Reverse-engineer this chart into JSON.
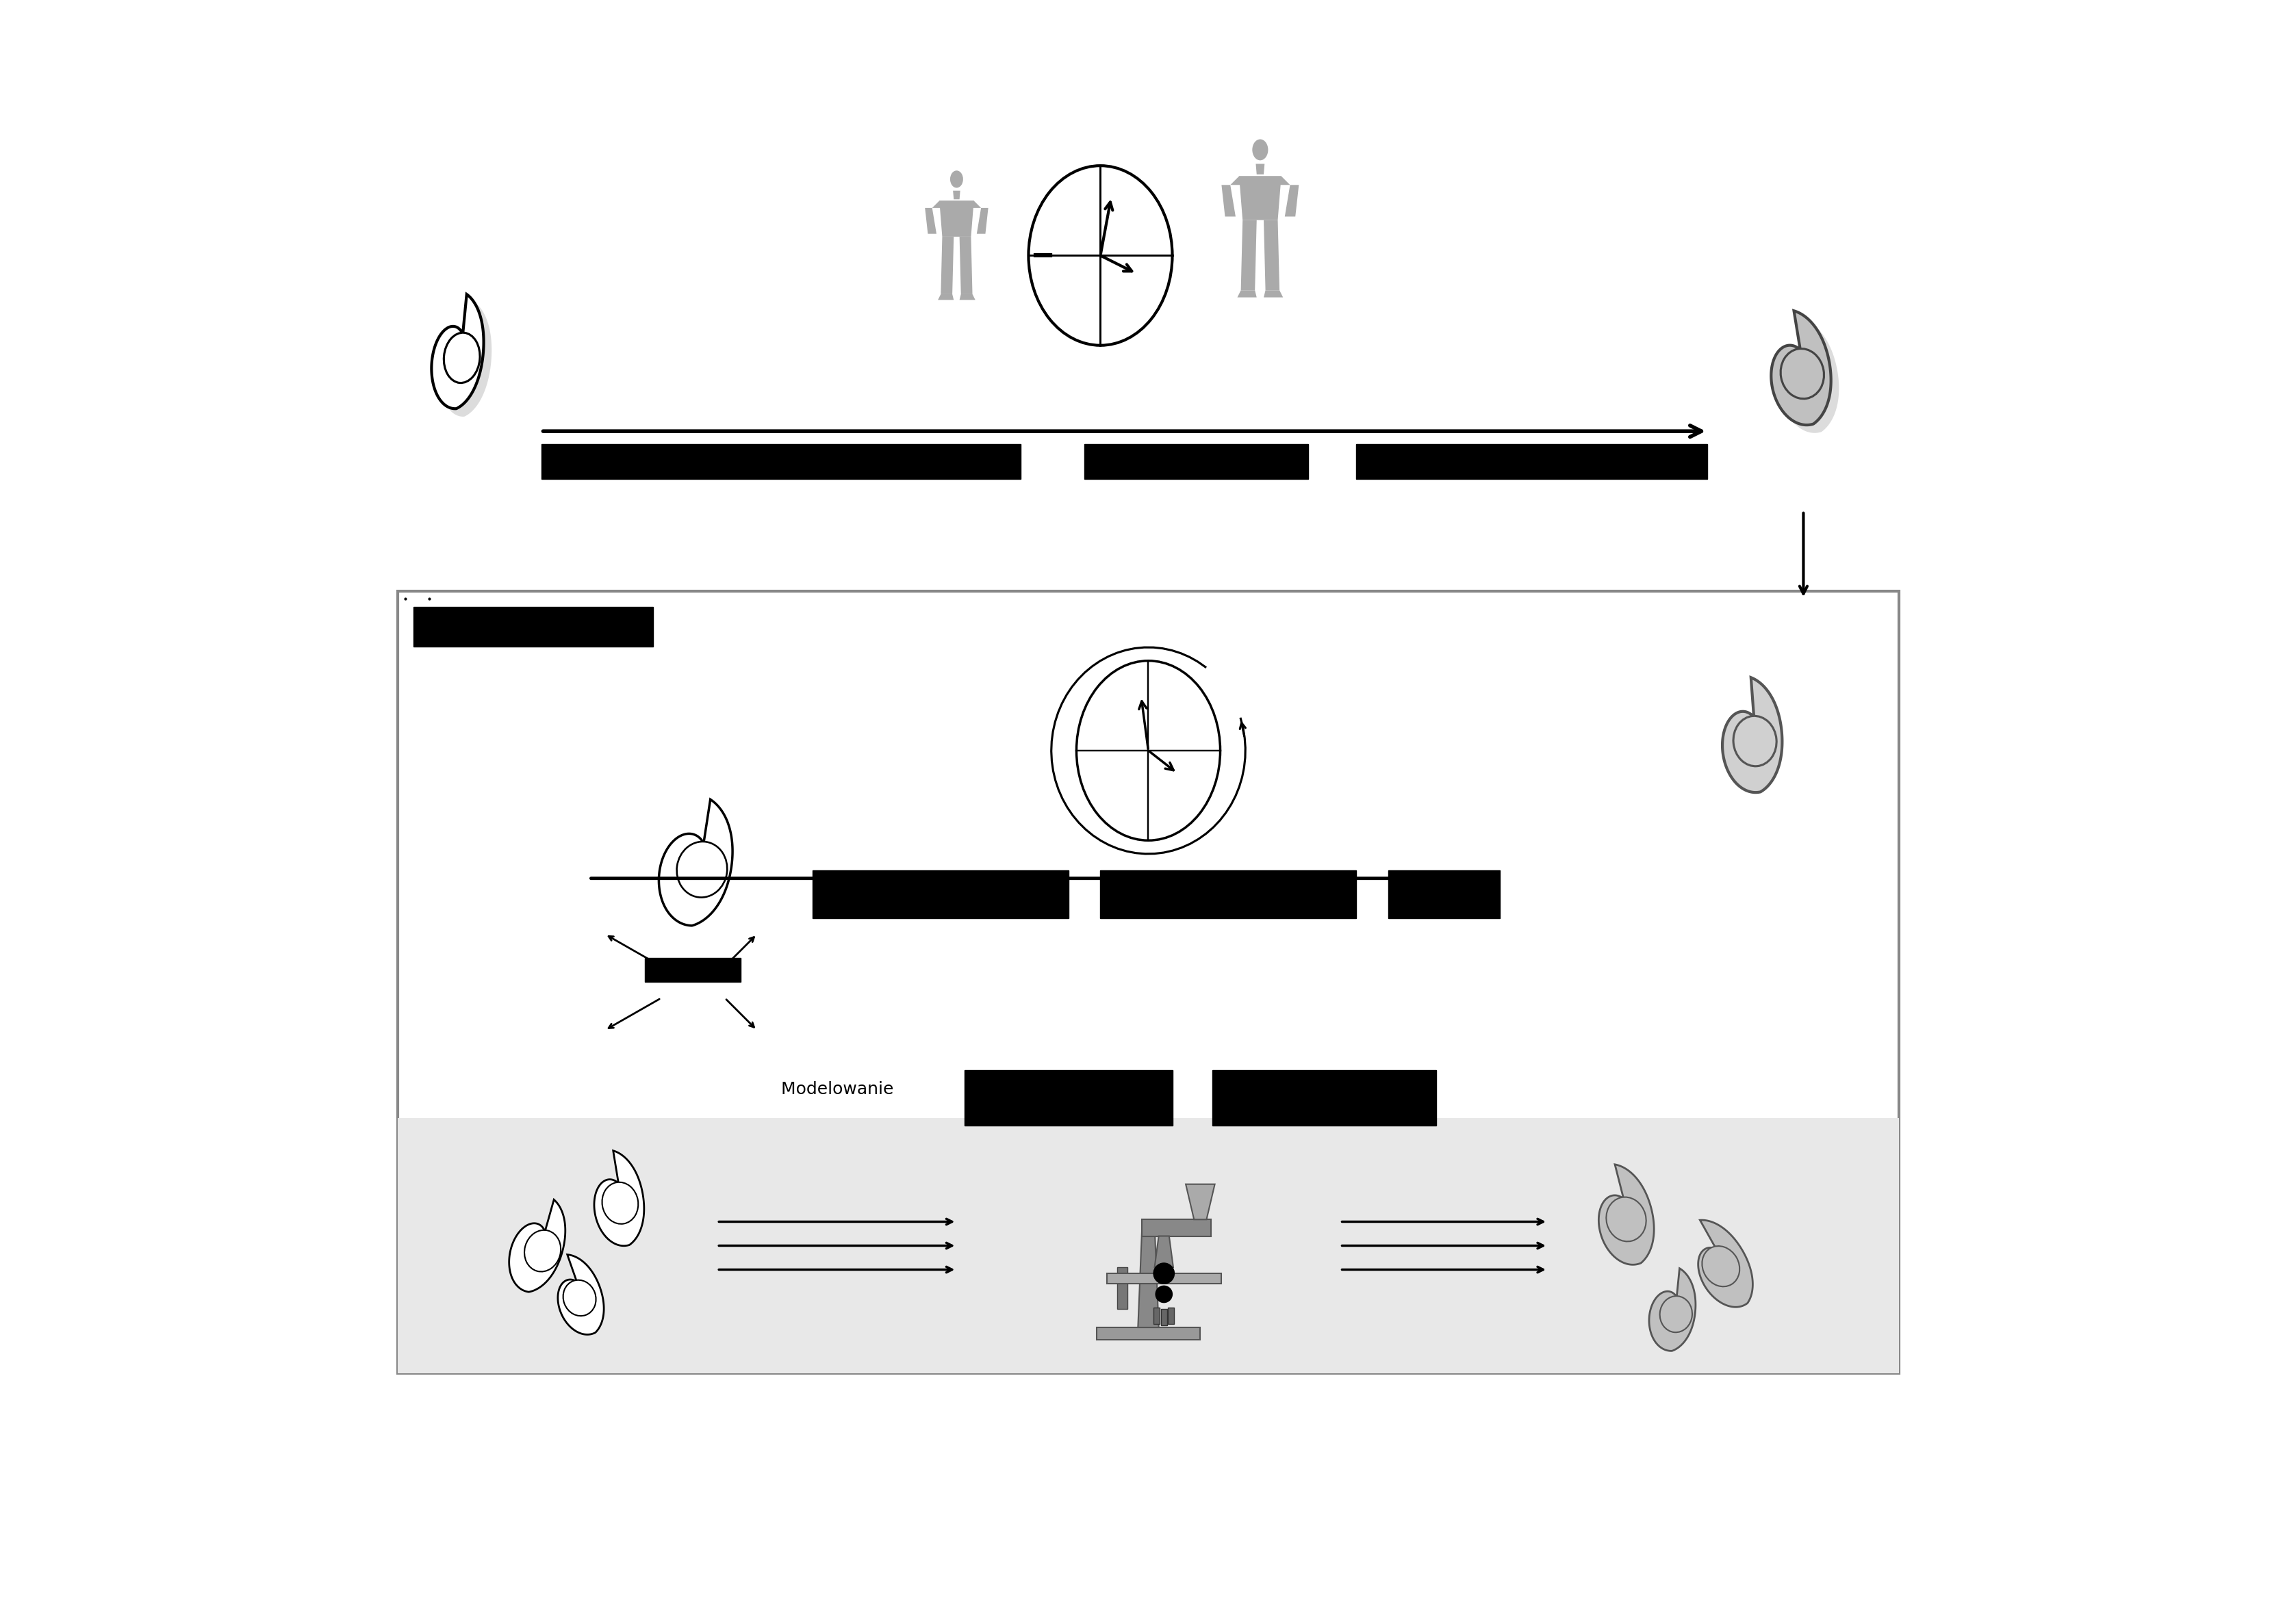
{
  "fig_width": 33.55,
  "fig_height": 23.34,
  "bg_color": "#ffffff",
  "box_bg": "#ffffff",
  "gray_section_bg": "#e8e8e8",
  "cell_fill_white": "#ffffff",
  "cell_fill_gray": "#c0c0c0",
  "cell_outline_black": "#000000",
  "cell_outline_dark": "#444444",
  "arrow_color": "#000000",
  "bar_color": "#000000",
  "box_border": "#999999",
  "shadow_color": "#aaaaaa",
  "human_fill": "#aaaaaa"
}
